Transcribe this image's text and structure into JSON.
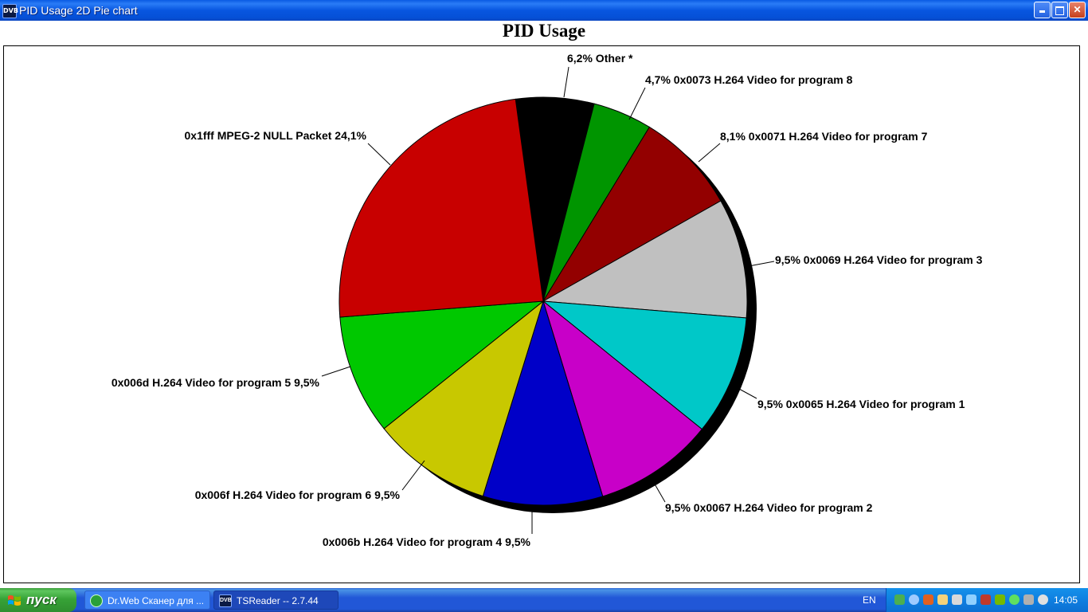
{
  "window": {
    "title": "PID Usage 2D Pie chart",
    "icon": "dvb-icon",
    "minimize_glyph": "",
    "maximize_glyph": "",
    "close_glyph": "✕"
  },
  "chart_data": {
    "type": "pie",
    "title": "PID Usage",
    "slices": [
      {
        "label": "Other *",
        "value": 6.2,
        "value_text": "6,2%",
        "color": "#000000"
      },
      {
        "label": "0x0073 H.264 Video for program 8",
        "value": 4.7,
        "value_text": "4,7%",
        "color": "#009500"
      },
      {
        "label": "0x0071 H.264 Video for program 7",
        "value": 8.1,
        "value_text": "8,1%",
        "color": "#930000"
      },
      {
        "label": "0x0069 H.264 Video for program 3",
        "value": 9.5,
        "value_text": "9,5%",
        "color": "#c0c0c0"
      },
      {
        "label": "0x0065 H.264 Video for program 1",
        "value": 9.5,
        "value_text": "9,5%",
        "color": "#00c8c8"
      },
      {
        "label": "0x0067 H.264 Video for program 2",
        "value": 9.5,
        "value_text": "9,5%",
        "color": "#c800c8"
      },
      {
        "label": "0x006b H.264 Video for program 4",
        "value": 9.5,
        "value_text": "9,5%",
        "color": "#0000c8"
      },
      {
        "label": "0x006f H.264 Video for program 6",
        "value": 9.5,
        "value_text": "9,5%",
        "color": "#c8c800"
      },
      {
        "label": "0x006d H.264 Video for program 5",
        "value": 9.5,
        "value_text": "9,5%",
        "color": "#00c800"
      },
      {
        "label": "0x1fff MPEG-2 NULL Packet",
        "value": 24.1,
        "value_text": "24,1%",
        "color": "#c80000"
      }
    ],
    "label_texts": [
      "6,2%  Other *",
      "4,7% 0x0073 H.264 Video for program 8",
      "8,1% 0x0071 H.264 Video for program 7",
      "9,5% 0x0069 H.264 Video for program 3",
      "9,5% 0x0065 H.264 Video for program 1",
      "9,5% 0x0067 H.264 Video for program 2",
      "0x006b H.264 Video for program 4 9,5%",
      "0x006f H.264 Video for program 6 9,5%",
      "0x006d H.264 Video for program 5 9,5%",
      "0x1fff MPEG-2 NULL Packet 24,1%"
    ],
    "shadow_color": "#000000"
  },
  "taskbar": {
    "start_label": "пуск",
    "tasks": [
      {
        "label": "Dr.Web Сканер для ...",
        "icon": "drweb-icon",
        "active": false
      },
      {
        "label": "TSReader -- 2.7.44",
        "icon": "dvb-icon",
        "active": true
      }
    ],
    "language": "EN",
    "clock": "14:05",
    "tray_icons": [
      "drweb-spider-icon",
      "network-icon",
      "app-icon",
      "calculator-icon",
      "volume-icon",
      "wifi-icon",
      "network-disconnected-icon",
      "nvidia-icon",
      "wireless-icon",
      "display-icon",
      "media-icon"
    ]
  }
}
